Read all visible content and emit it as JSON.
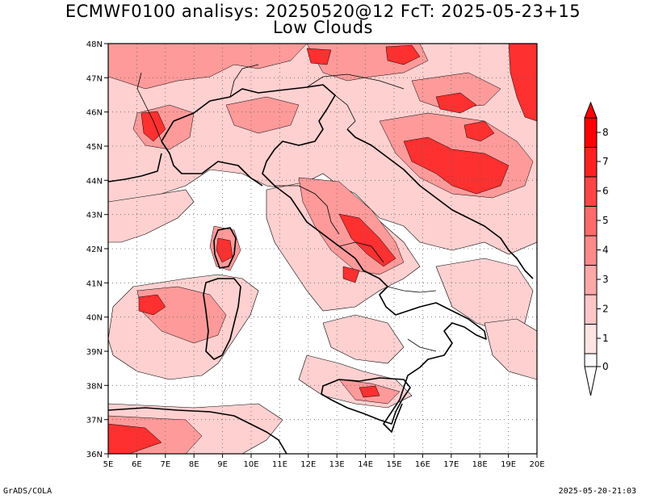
{
  "title_line1": "ECMWF0100 analisys: 20250520@12 FcT: 2025-05-23+15",
  "title_line2": "Low Clouds",
  "footer_left": "GrADS/COLA",
  "footer_right": "2025-05-20-21:03",
  "map": {
    "lon_labels": [
      "5E",
      "6E",
      "7E",
      "8E",
      "9E",
      "10E",
      "11E",
      "12E",
      "13E",
      "14E",
      "15E",
      "16E",
      "17E",
      "18E",
      "19E",
      "20E"
    ],
    "lat_labels": [
      "48N",
      "47N",
      "46N",
      "45N",
      "44N",
      "43N",
      "42N",
      "41N",
      "40N",
      "39N",
      "38N",
      "37N",
      "36N"
    ],
    "lon_range": [
      5,
      20
    ],
    "lat_range": [
      36,
      48
    ],
    "gridlines": "dotted"
  },
  "colorbar": {
    "levels": [
      "8",
      "7",
      "6",
      "5",
      "4",
      "3",
      "2",
      "1",
      "0"
    ],
    "colors": [
      "#ff0000",
      "#ff2020",
      "#ff4545",
      "#ff6a6a",
      "#ff8a8a",
      "#ffa8a8",
      "#ffc6c6",
      "#ffe4e4"
    ]
  }
}
